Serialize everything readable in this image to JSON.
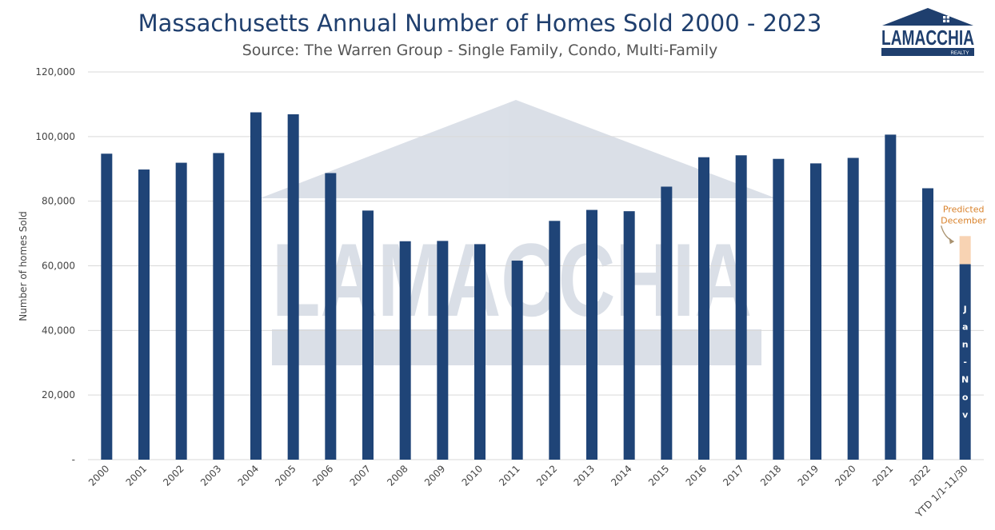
{
  "brand": {
    "name": "LAMACCHIA",
    "tagline": "REALTY",
    "color": "#1f3f6e"
  },
  "chart_data": {
    "type": "bar",
    "title": "Massachusetts Annual Number of Homes Sold 2000 - 2023",
    "subtitle": "Source: The Warren Group - Single Family, Condo, Multi-Family",
    "xlabel": "",
    "ylabel": "Number of homes Sold",
    "ylim": [
      0,
      120000
    ],
    "yticks": [
      "-",
      "20,000",
      "40,000",
      "60,000",
      "80,000",
      "100,000",
      "120,000"
    ],
    "grid": true,
    "categories": [
      "2000",
      "2001",
      "2002",
      "2003",
      "2004",
      "2005",
      "2006",
      "2007",
      "2008",
      "2009",
      "2010",
      "2011",
      "2012",
      "2013",
      "2014",
      "2015",
      "2016",
      "2017",
      "2018",
      "2019",
      "2020",
      "2021",
      "2022",
      "YTD 1/1-11/30"
    ],
    "series": [
      {
        "name": "",
        "color": "#1f4477",
        "values": [
          94700,
          89800,
          91900,
          94900,
          107500,
          106900,
          88700,
          77100,
          67600,
          67700,
          66700,
          61600,
          73900,
          77300,
          76900,
          84500,
          93600,
          94200,
          93100,
          91700,
          93400,
          100600,
          84000,
          60500
        ]
      },
      {
        "name": "Predicted December",
        "color": "#f8d3b3",
        "values": [
          0,
          0,
          0,
          0,
          0,
          0,
          0,
          0,
          0,
          0,
          0,
          0,
          0,
          0,
          0,
          0,
          0,
          0,
          0,
          0,
          0,
          0,
          0,
          8700
        ]
      }
    ],
    "annotations": [
      {
        "text": "Predicted",
        "category": "YTD 1/1-11/30"
      },
      {
        "text": "December",
        "category": "YTD 1/1-11/30"
      }
    ],
    "bar_note": [
      "J",
      "a",
      "n",
      "-",
      "N",
      "o",
      "v"
    ]
  }
}
